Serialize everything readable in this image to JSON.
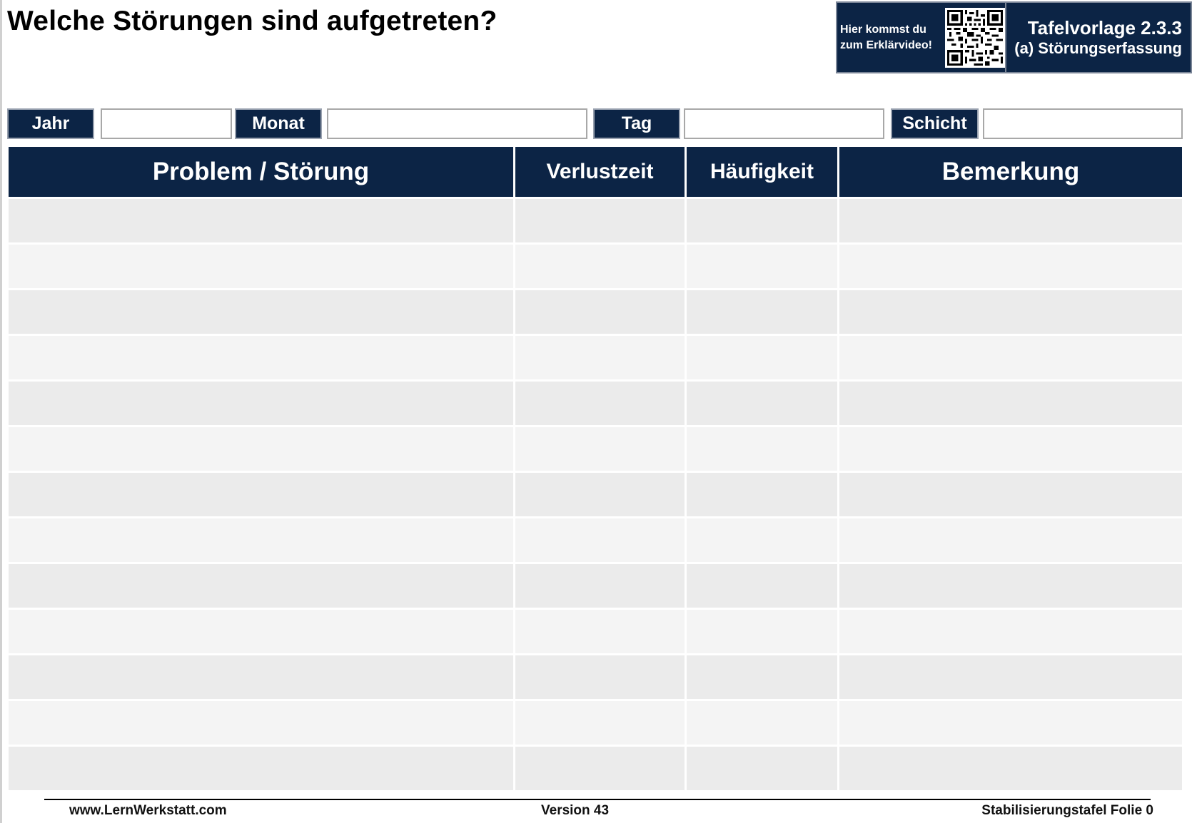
{
  "page": {
    "title": "Welche Störungen sind aufgetreten?"
  },
  "badge": {
    "video_line1": "Hier kommst du",
    "video_line2": "zum Erklärvideo!",
    "template_line1": "Tafelvorlage 2.3.3",
    "template_line2": "(a) Störungserfassung",
    "qr_icon": "qr-code-icon",
    "color": "#0c2445"
  },
  "fields": {
    "year_label": "Jahr",
    "year_value": "",
    "month_label": "Monat",
    "month_value": "",
    "day_label": "Tag",
    "day_value": "",
    "shift_label": "Schicht",
    "shift_value": ""
  },
  "table": {
    "columns": [
      "Problem / Störung",
      "Verlustzeit",
      "Häufigkeit",
      "Bemerkung"
    ],
    "rows": [
      [
        "",
        "",
        "",
        ""
      ],
      [
        "",
        "",
        "",
        ""
      ],
      [
        "",
        "",
        "",
        ""
      ],
      [
        "",
        "",
        "",
        ""
      ],
      [
        "",
        "",
        "",
        ""
      ],
      [
        "",
        "",
        "",
        ""
      ],
      [
        "",
        "",
        "",
        ""
      ],
      [
        "",
        "",
        "",
        ""
      ],
      [
        "",
        "",
        "",
        ""
      ],
      [
        "",
        "",
        "",
        ""
      ],
      [
        "",
        "",
        "",
        ""
      ],
      [
        "",
        "",
        "",
        ""
      ],
      [
        "",
        "",
        "",
        ""
      ]
    ],
    "row_colors": [
      "#ebebeb",
      "#f4f4f4"
    ]
  },
  "footer": {
    "website": "www.LernWerkstatt.com",
    "version": "Version 43",
    "slide": "Stabilisierungstafel Folie 0"
  }
}
